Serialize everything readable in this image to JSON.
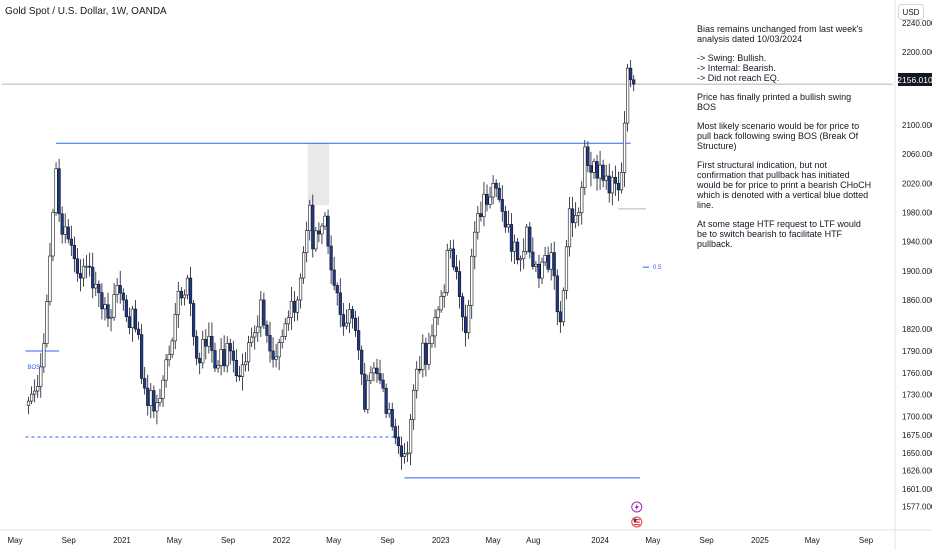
{
  "header": {
    "symbol_title": "Gold Spot / U.S. Dollar, 1W, OANDA",
    "currency_label": "USD"
  },
  "price_tag": "2156.010",
  "annotation": {
    "lines": [
      "Bias remains unchanged from last week's analysis dated 10/03/2024",
      "",
      "-> Swing: Bullish.",
      "-> Internal: Bearish.",
      "-> Did not reach EQ.",
      "",
      "Price has finally printed a bullish swing BOS",
      "",
      "Most likely scenario would be for price to pull back following swing BOS (Break Of Structure)",
      "",
      "First structural indication, but not confirmation that pullback has initiated would be for price to print a bearish CHoCH which is denoted with a vertical blue dotted line.",
      "",
      "At some stage HTF request to LTF would be to switch bearish to facilitate HTF pullback."
    ]
  },
  "labels": {
    "bos": "BOS",
    "fib": "0.5"
  },
  "chart_data": {
    "type": "candlestick",
    "timeframe": "1W",
    "y_axis": {
      "range": [
        1565,
        2255
      ],
      "ticks": [
        2240,
        2200,
        2160,
        2100,
        2060,
        2020,
        1980,
        1940,
        1900,
        1860,
        1820,
        1790,
        1760,
        1730,
        1700,
        1675,
        1650,
        1626,
        1601,
        1577
      ]
    },
    "x_axis": {
      "ticks": [
        {
          "label": "May",
          "date": "2020-05"
        },
        {
          "label": "Sep",
          "date": "2020-09"
        },
        {
          "label": "2021",
          "date": "2021-01"
        },
        {
          "label": "May",
          "date": "2021-05"
        },
        {
          "label": "Sep",
          "date": "2021-09"
        },
        {
          "label": "2022",
          "date": "2022-01"
        },
        {
          "label": "May",
          "date": "2022-05"
        },
        {
          "label": "Sep",
          "date": "2022-09"
        },
        {
          "label": "2023",
          "date": "2023-01"
        },
        {
          "label": "May",
          "date": "2023-05"
        },
        {
          "label": "Aug",
          "date": "2023-08"
        },
        {
          "label": "2024",
          "date": "2024-01"
        },
        {
          "label": "May",
          "date": "2024-05"
        },
        {
          "label": "Sep",
          "date": "2024-09"
        },
        {
          "label": "2025",
          "date": "2025-01"
        },
        {
          "label": "May",
          "date": "2025-05"
        },
        {
          "label": "Sep",
          "date": "2025-09"
        }
      ]
    },
    "current_price": 2156.01,
    "anchors": [
      [
        "2020-05-25",
        1715
      ],
      [
        "2020-06-15",
        1735
      ],
      [
        "2020-07-06",
        1800
      ],
      [
        "2020-07-27",
        1980
      ],
      [
        "2020-08-03",
        2040
      ],
      [
        "2020-08-17",
        1950
      ],
      [
        "2020-09-07",
        1935
      ],
      [
        "2020-09-28",
        1890
      ],
      [
        "2020-10-19",
        1905
      ],
      [
        "2020-11-09",
        1870
      ],
      [
        "2020-11-30",
        1835
      ],
      [
        "2020-12-21",
        1880
      ],
      [
        "2021-01-04",
        1860
      ],
      [
        "2021-02-01",
        1820
      ],
      [
        "2021-03-01",
        1715
      ],
      [
        "2021-03-29",
        1725
      ],
      [
        "2021-05-03",
        1840
      ],
      [
        "2021-05-31",
        1890
      ],
      [
        "2021-06-21",
        1780
      ],
      [
        "2021-07-19",
        1810
      ],
      [
        "2021-08-09",
        1770
      ],
      [
        "2021-09-06",
        1790
      ],
      [
        "2021-09-27",
        1755
      ],
      [
        "2021-11-01",
        1815
      ],
      [
        "2021-11-15",
        1860
      ],
      [
        "2021-12-06",
        1790
      ],
      [
        "2022-01-03",
        1810
      ],
      [
        "2022-02-07",
        1860
      ],
      [
        "2022-03-07",
        1990
      ],
      [
        "2022-03-14",
        1930
      ],
      [
        "2022-04-11",
        1975
      ],
      [
        "2022-05-02",
        1880
      ],
      [
        "2022-05-16",
        1840
      ],
      [
        "2022-06-13",
        1835
      ],
      [
        "2022-07-11",
        1710
      ],
      [
        "2022-07-25",
        1760
      ],
      [
        "2022-08-15",
        1750
      ],
      [
        "2022-09-05",
        1710
      ],
      [
        "2022-09-26",
        1660
      ],
      [
        "2022-10-17",
        1650
      ],
      [
        "2022-11-07",
        1765
      ],
      [
        "2022-12-05",
        1800
      ],
      [
        "2023-01-02",
        1865
      ],
      [
        "2023-01-23",
        1930
      ],
      [
        "2023-02-27",
        1815
      ],
      [
        "2023-03-13",
        1920
      ],
      [
        "2023-04-10",
        2005
      ],
      [
        "2023-05-01",
        2020
      ],
      [
        "2023-05-29",
        1960
      ],
      [
        "2023-06-26",
        1915
      ],
      [
        "2023-07-17",
        1960
      ],
      [
        "2023-08-14",
        1890
      ],
      [
        "2023-09-11",
        1925
      ],
      [
        "2023-10-02",
        1830
      ],
      [
        "2023-10-23",
        1985
      ],
      [
        "2023-11-13",
        1980
      ],
      [
        "2023-11-27",
        2070
      ],
      [
        "2023-12-11",
        2035
      ],
      [
        "2024-01-01",
        2045
      ],
      [
        "2024-01-15",
        2030
      ],
      [
        "2024-02-05",
        2020
      ],
      [
        "2024-02-19",
        2035
      ],
      [
        "2024-03-04",
        2178
      ],
      [
        "2024-03-11",
        2162
      ],
      [
        "2024-03-18",
        2156
      ]
    ],
    "levels": [
      {
        "name": "swing-high-line",
        "price": 2075,
        "from": "2020-08-03",
        "to": "2024-03-11",
        "color": "#2962ff",
        "style": "solid"
      },
      {
        "name": "swing-low-line",
        "price": 1616,
        "from": "2022-10-10",
        "to": "2024-04-01",
        "color": "#2962ff",
        "style": "solid"
      },
      {
        "name": "prior-low-dashed-line",
        "price": 1672,
        "from": "2020-05-25",
        "to": "2022-10-03",
        "color": "#2962ff",
        "style": "dashed"
      },
      {
        "name": "bos-line",
        "price": 1790,
        "from": "2020-05-25",
        "to": "2020-08-10",
        "color": "#2962ff",
        "style": "solid"
      },
      {
        "name": "pullback-low-line",
        "price": 1985,
        "from": "2024-02-12",
        "to": "2024-04-15",
        "color": "#b2b5be",
        "style": "solid"
      },
      {
        "name": "current-price-line",
        "price": 2156.01,
        "from": "2020-04-01",
        "to": "2025-11-01",
        "color": "#9598a1",
        "style": "solid"
      },
      {
        "name": "fib-line",
        "price": 1905,
        "from": "2024-04-08",
        "to": "2024-04-22",
        "color": "#2962ff",
        "style": "solid"
      }
    ]
  },
  "colors": {
    "bull": "#ffffff",
    "bear": "#1e3a8a",
    "wick": "#131722",
    "level": "#2962ff",
    "zone": "#e9e9ec"
  }
}
